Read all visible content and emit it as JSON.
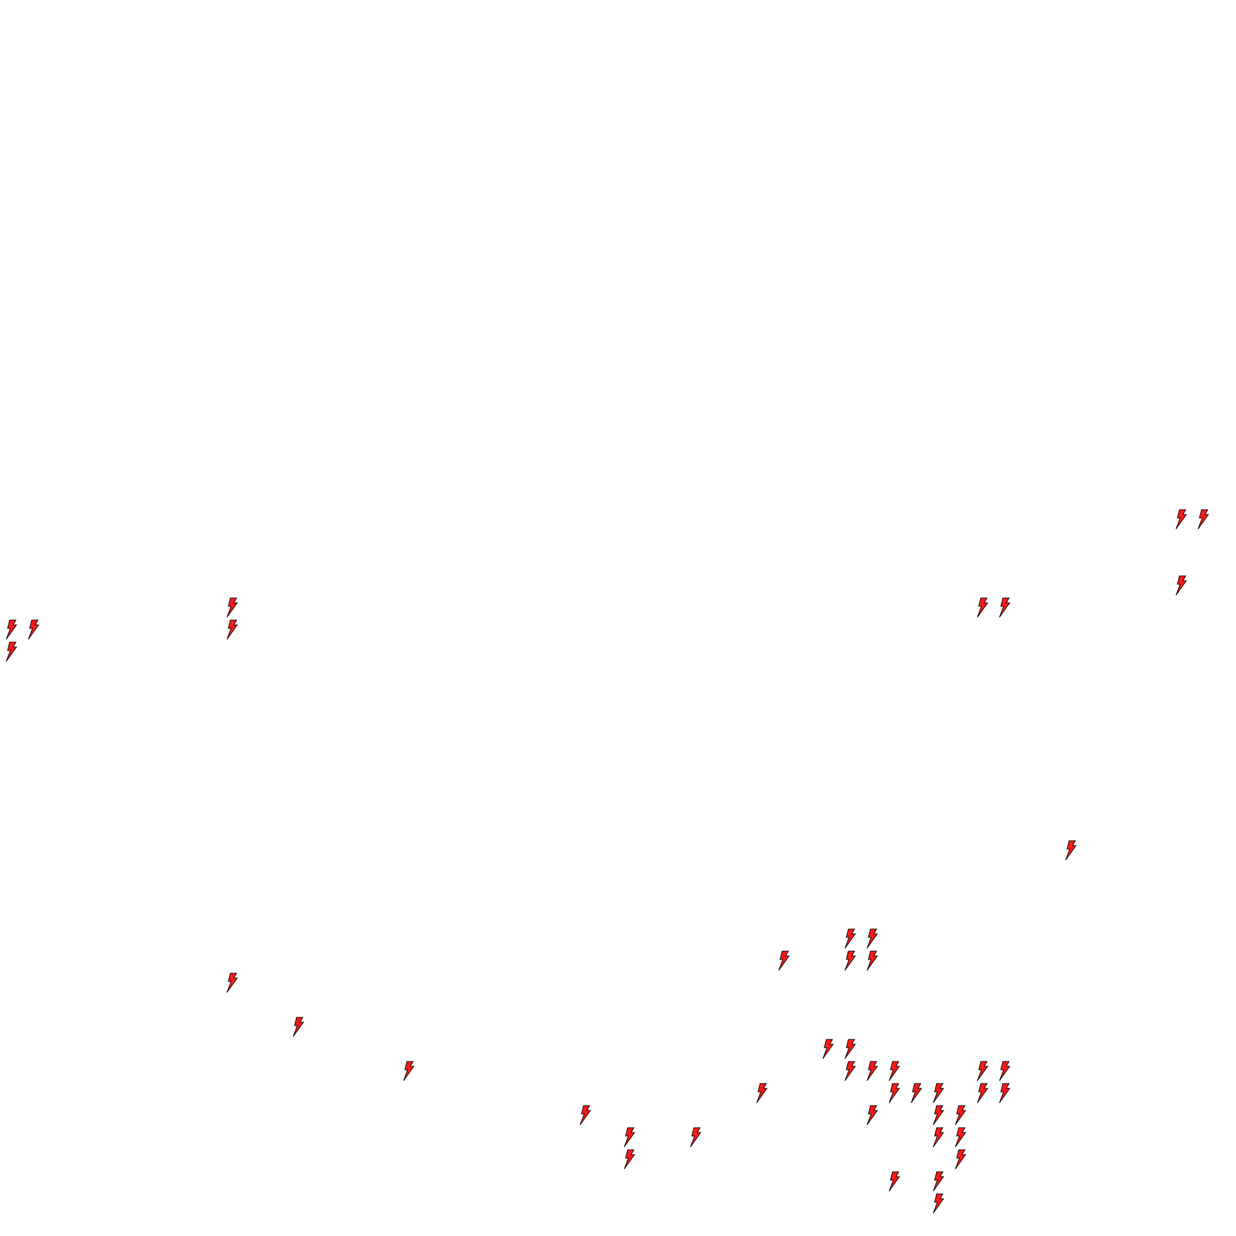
{
  "map": {
    "marker_icon": "lightning-bolt-icon",
    "marker_fill": "#ff1a1a",
    "marker_stroke": "#000000",
    "background": "#ffffff"
  }
}
